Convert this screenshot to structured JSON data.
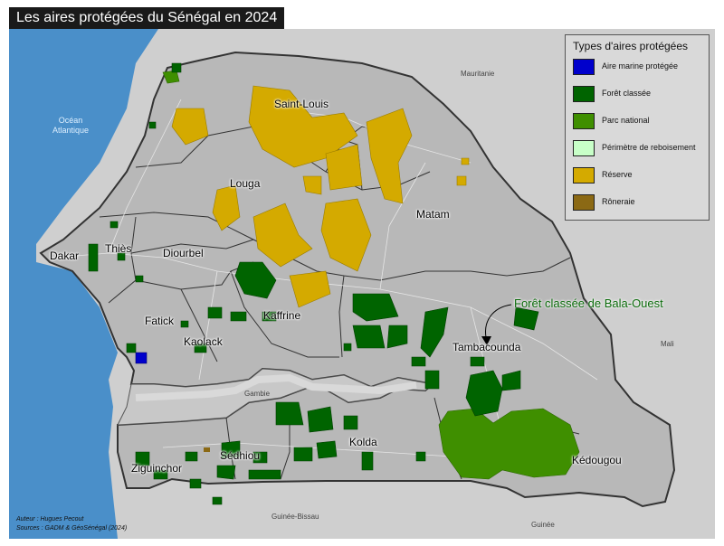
{
  "title": "Les aires protégées du Sénégal en 2024",
  "legend": {
    "title": "Types d'aires protégées",
    "items": [
      {
        "label": "Aire marine protégée",
        "color": "#0000cc"
      },
      {
        "label": "Forêt classée",
        "color": "#006400"
      },
      {
        "label": "Parc national",
        "color": "#3f8f00"
      },
      {
        "label": "Périmètre de reboisement",
        "color": "#c8ffc8"
      },
      {
        "label": "Réserve",
        "color": "#d4aa00"
      },
      {
        "label": "Rôneraie",
        "color": "#8b6914"
      }
    ]
  },
  "regions": {
    "saint_louis": "Saint-Louis",
    "louga": "Louga",
    "matam": "Matam",
    "thies": "Thiès",
    "dakar": "Dakar",
    "diourbel": "Diourbel",
    "fatick": "Fatick",
    "kaolack": "Kaolack",
    "kaffrine": "Kaffrine",
    "tambacounda": "Tambacounda",
    "kolda": "Kolda",
    "sedhiou": "Sédhiou",
    "ziguinchor": "Ziguinchor",
    "kedougou": "Kédougou"
  },
  "neighbors": {
    "mauritanie": "Mauritanie",
    "mali": "Mali",
    "gambie": "Gambie",
    "guinee_bissau": "Guinée-Bissau",
    "guinee": "Guinée"
  },
  "ocean": {
    "line1": "Océan",
    "line2": "Atlantique"
  },
  "annotation": "Forêt classée de Bala-Ouest",
  "credits": {
    "author": "Auteur : Hugues Pecout",
    "sources": "Sources : GADM & GéoSénégal (2024)"
  },
  "colors": {
    "background": "#cfcfcf",
    "ocean": "#4a8fc9",
    "land": "#b8b8b8",
    "neighbor": "#d4d4d4",
    "river": "#d9d9d9",
    "roads": "#e6e6e6"
  }
}
